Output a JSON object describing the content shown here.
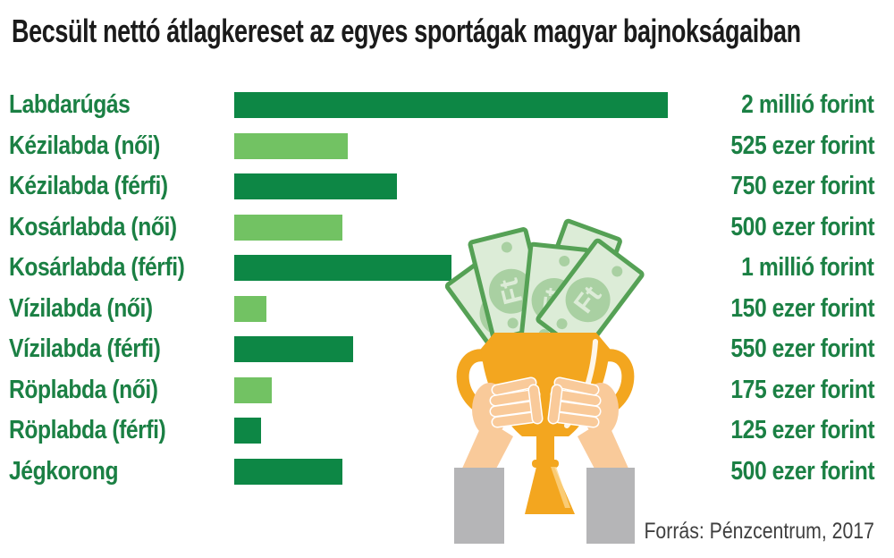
{
  "title": "Becsült nettó átlagkereset az egyes sportágak magyar bajnokságaiban",
  "source": "Forrás: Pénzcentrum, 2017",
  "colors": {
    "bar_dark": "#0d8745",
    "bar_light": "#72c263",
    "text_green": "#1b8044",
    "title_color": "#1b1b1b",
    "source_color": "#3f3f3f",
    "trophy_orange": "#f3a61f",
    "skin": "#f9ca9a",
    "sleeve_gray": "#b5b5b7",
    "note_fill": "#dcecd7",
    "note_border": "#55a155",
    "note_circle": "#a9d0a2"
  },
  "illustration": {
    "description": "two hands holding a gold trophy cup stuffed with green Ft banknotes",
    "note_symbol": "Ft"
  },
  "chart_data": {
    "type": "bar",
    "orientation": "horizontal",
    "title": "Becsült nettó átlagkereset az egyes sportágak magyar bajnokságaiban",
    "unit": "forint (havi nettó átlagkereset)",
    "value_axis": {
      "min_ezer_forint": 0,
      "max_ezer_forint": 2000,
      "gridlines": false,
      "axis_labels_visible": false
    },
    "legend": "none",
    "rows": [
      {
        "category": "Labdarúgás",
        "value_ezer_forint": 2000,
        "value_label": "2 millió forint",
        "shade": "dark"
      },
      {
        "category": "Kézilabda (női)",
        "value_ezer_forint": 525,
        "value_label": "525 ezer forint",
        "shade": "light"
      },
      {
        "category": "Kézilabda (férfi)",
        "value_ezer_forint": 750,
        "value_label": "750 ezer forint",
        "shade": "dark"
      },
      {
        "category": "Kosárlabda (női)",
        "value_ezer_forint": 500,
        "value_label": "500 ezer forint",
        "shade": "light"
      },
      {
        "category": "Kosárlabda (férfi)",
        "value_ezer_forint": 1000,
        "value_label": "1 millió forint",
        "shade": "dark"
      },
      {
        "category": "Vízilabda (női)",
        "value_ezer_forint": 150,
        "value_label": "150 ezer forint",
        "shade": "light"
      },
      {
        "category": "Vízilabda (férfi)",
        "value_ezer_forint": 550,
        "value_label": "550 ezer forint",
        "shade": "dark"
      },
      {
        "category": "Röplabda (női)",
        "value_ezer_forint": 175,
        "value_label": "175 ezer forint",
        "shade": "light"
      },
      {
        "category": "Röplabda (férfi)",
        "value_ezer_forint": 125,
        "value_label": "125 ezer forint",
        "shade": "dark"
      },
      {
        "category": "Jégkorong",
        "value_ezer_forint": 500,
        "value_label": "500 ezer forint",
        "shade": "dark"
      }
    ],
    "source": "Forrás: Pénzcentrum, 2017"
  }
}
